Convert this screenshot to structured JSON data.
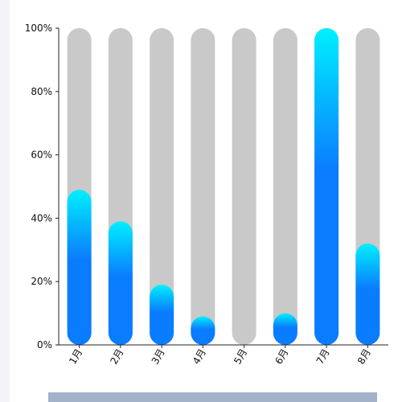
{
  "chart_data": {
    "type": "bar",
    "categories": [
      "1月",
      "2月",
      "3月",
      "4月",
      "5月",
      "6月",
      "7月",
      "8月"
    ],
    "values": [
      49,
      39,
      19,
      9,
      0,
      10,
      100,
      32
    ],
    "ylim": [
      0,
      100
    ],
    "yticks": [
      "0%",
      "20%",
      "40%",
      "60%",
      "80%",
      "100%"
    ],
    "grid": false,
    "colors": {
      "background_bar": "#c9c9c9",
      "gradient_top": "#00f0ff",
      "gradient_bottom": "#0a7cff",
      "axis": "#222222"
    }
  }
}
